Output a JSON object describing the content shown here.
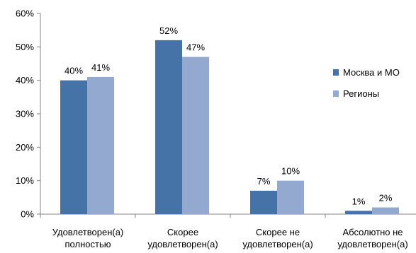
{
  "chart_data": {
    "type": "bar",
    "categories": [
      [
        "Удовлетворен(а)",
        "полностью"
      ],
      [
        "Скорее",
        "удовлетворен(а)"
      ],
      [
        "Скорее не",
        "удовлетворен(а)"
      ],
      [
        "Абсолютно не",
        "удовлетворен(а)"
      ]
    ],
    "series": [
      {
        "name": "Москва и МО",
        "values": [
          40,
          52,
          7,
          1
        ],
        "color": "#4572a7",
        "labels": [
          "40%",
          "52%",
          "7%",
          "1%"
        ]
      },
      {
        "name": "Регионы",
        "values": [
          41,
          47,
          10,
          2
        ],
        "color": "#93a9d0",
        "labels": [
          "41%",
          "47%",
          "10%",
          "2%"
        ]
      }
    ],
    "y_ticks": [
      "0%",
      "10%",
      "20%",
      "30%",
      "40%",
      "50%",
      "60%"
    ],
    "ylim": [
      0,
      60
    ],
    "legend_position": "right",
    "grid": false
  }
}
